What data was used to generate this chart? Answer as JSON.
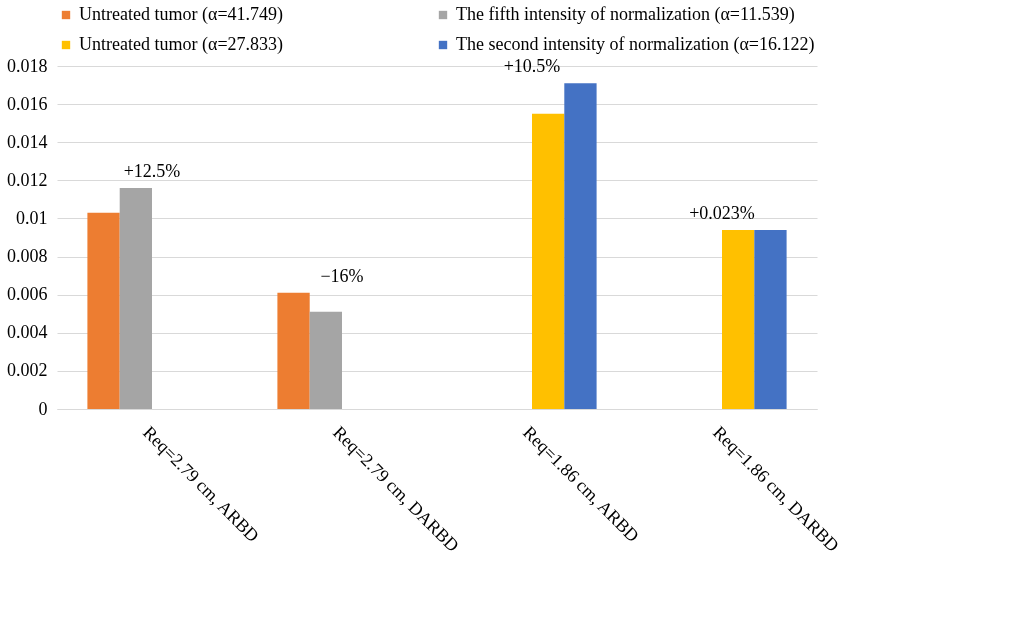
{
  "chart_data": {
    "type": "bar",
    "categories": [
      "Req=2.79 cm, ARBD",
      "Req=2.79 cm, DARBD",
      "Req=1.86 cm, ARBD",
      "Req=1.86 cm, DARBD"
    ],
    "series": [
      {
        "name": "Untreated tumor (α=41.749)",
        "color": "#ed7d31",
        "values": [
          0.0103,
          0.0061,
          null,
          null
        ]
      },
      {
        "name": "The fifth intensity of normalization (α=11.539)",
        "color": "#a5a5a5",
        "values": [
          0.0116,
          0.0051,
          null,
          null
        ]
      },
      {
        "name": "Untreated tumor (α=27.833)",
        "color": "#ffc000",
        "values": [
          null,
          null,
          0.0155,
          0.0094
        ]
      },
      {
        "name": "The second intensity of normalization (α=16.122)",
        "color": "#4472c4",
        "values": [
          null,
          null,
          0.0171,
          0.0094
        ]
      }
    ],
    "ylim": [
      0,
      0.018
    ],
    "yticks": [
      0,
      0.002,
      0.004,
      0.006,
      0.008,
      0.01,
      0.012,
      0.014,
      0.016,
      0.018
    ],
    "grid": true,
    "legend": "top",
    "annotations": [
      "+12.5%",
      "−16%",
      "+10.5%",
      "+0.023%"
    ]
  }
}
